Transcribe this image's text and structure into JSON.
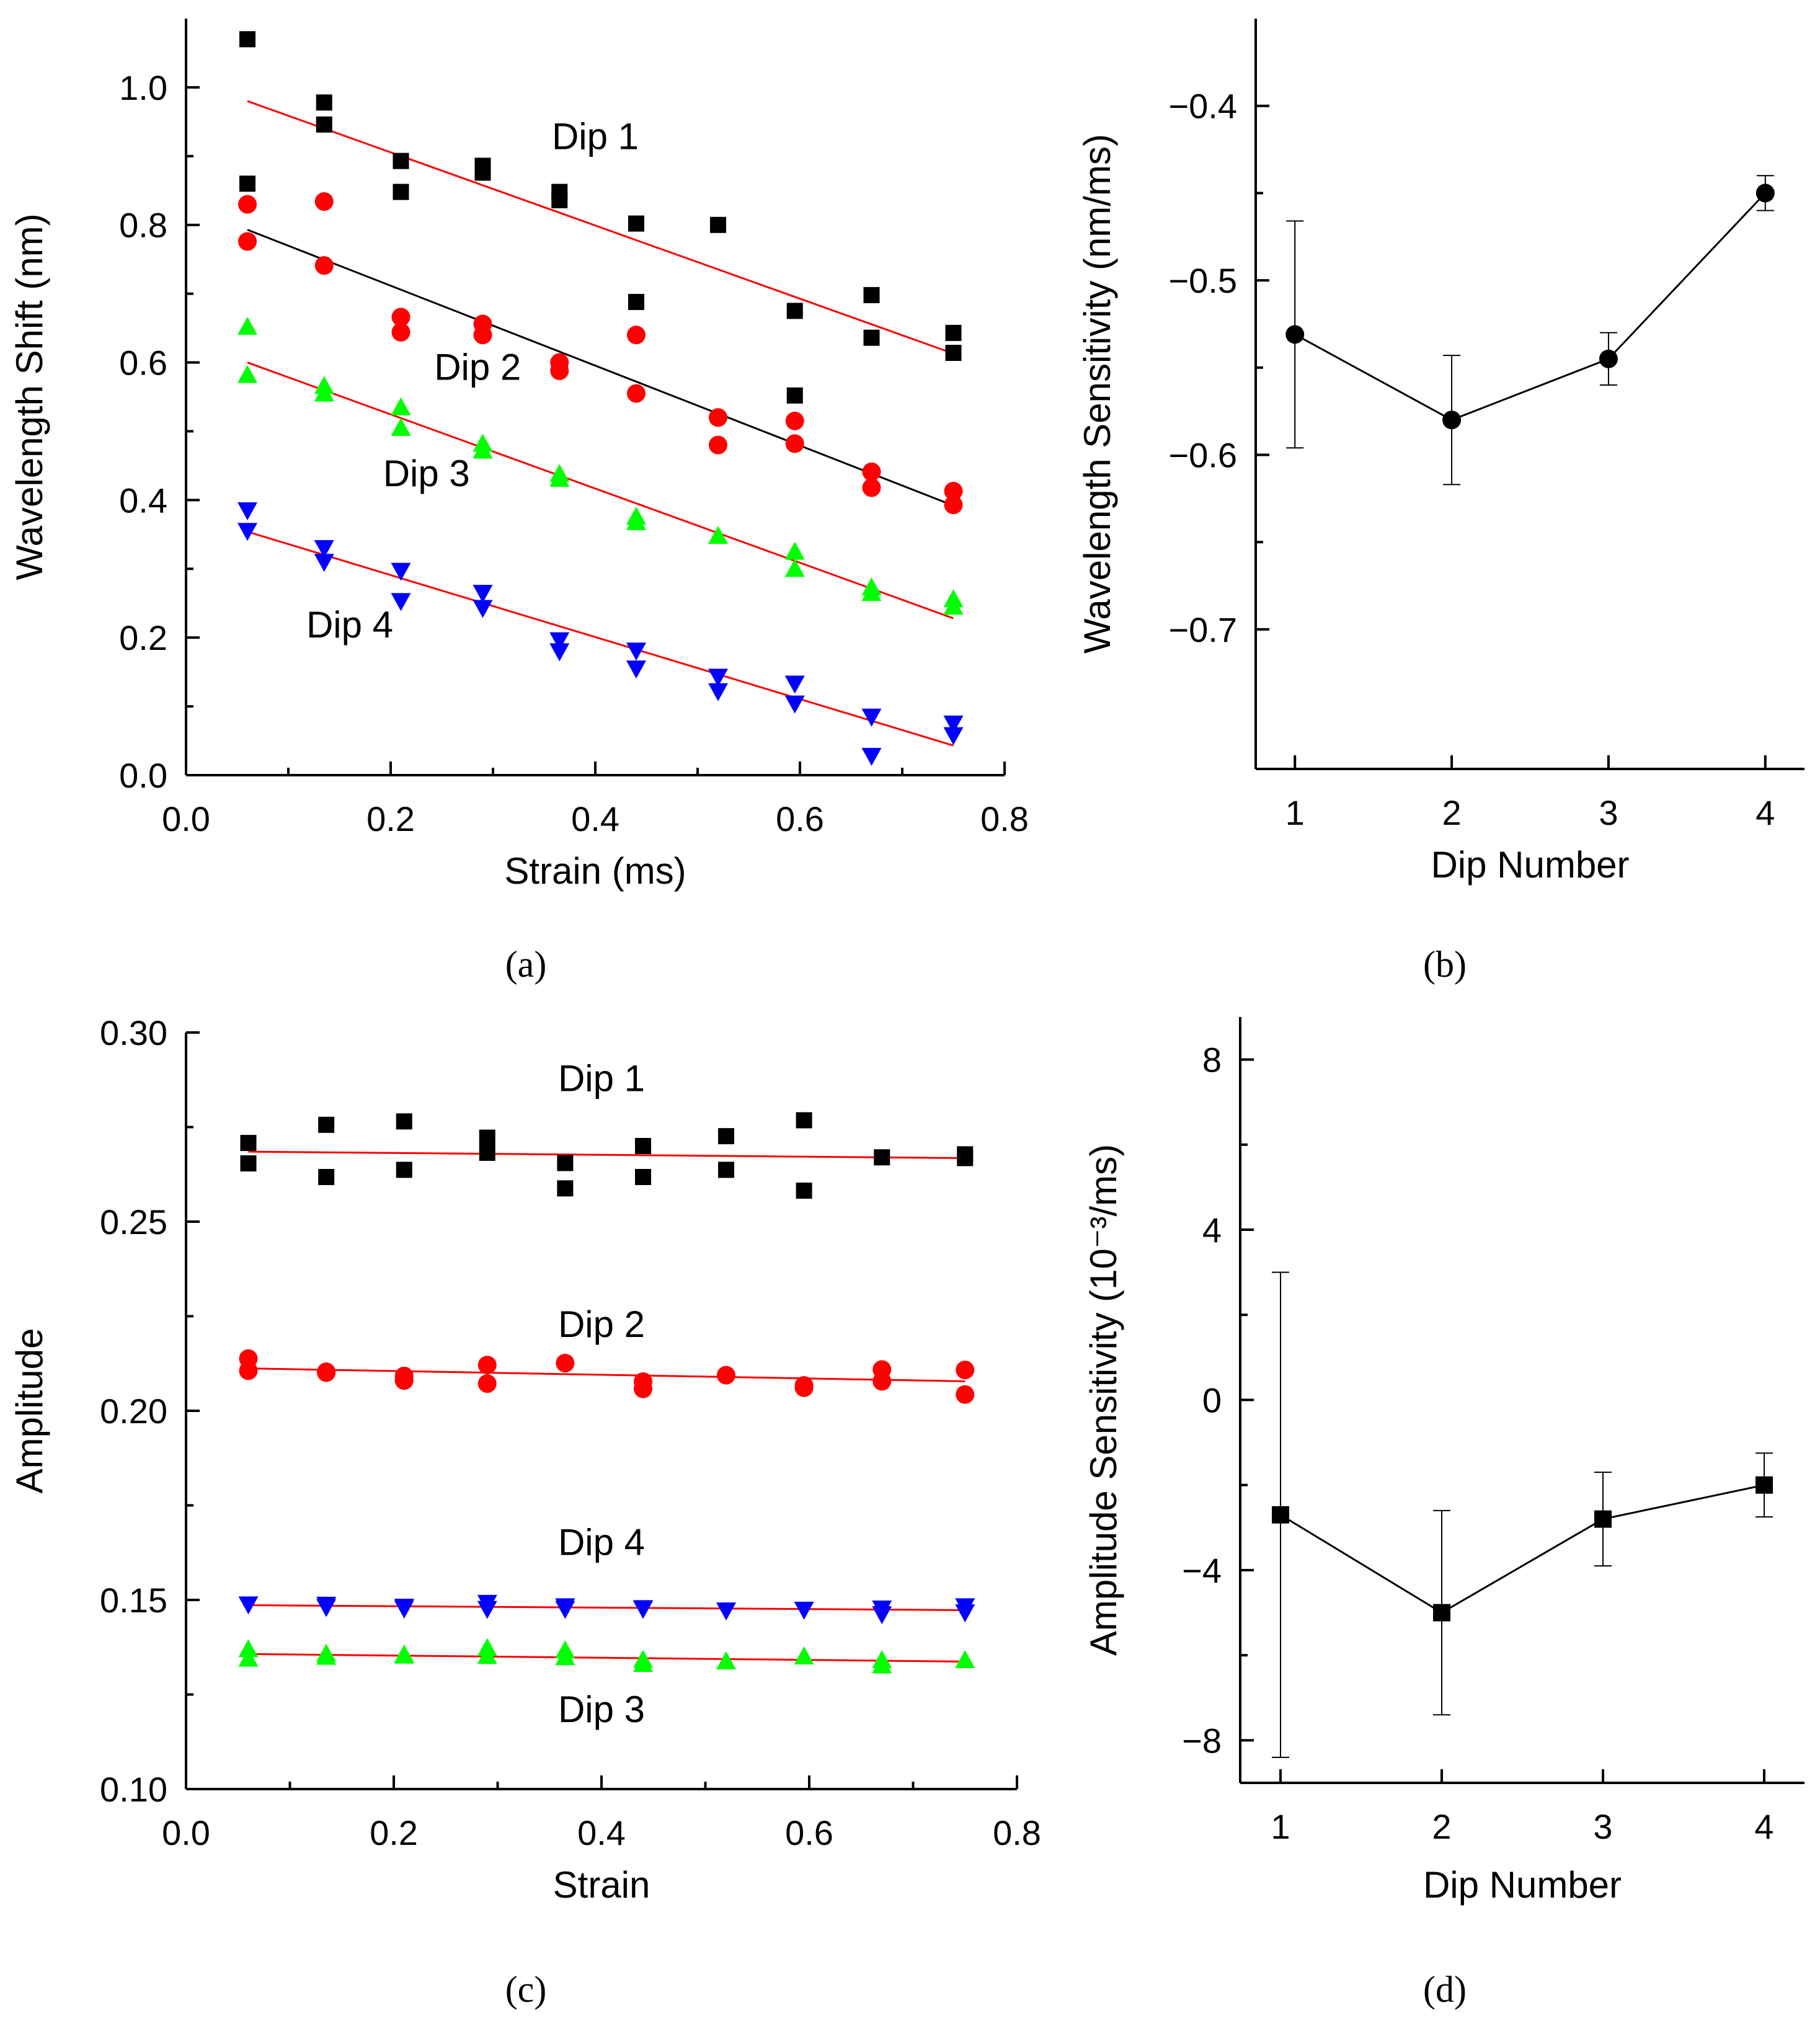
{
  "chart_data": [
    {
      "id": "a",
      "type": "scatter",
      "panel_label": "a",
      "xlabel": "Strain (ms)",
      "ylabel": "Wavelength Shift (nm)",
      "xlim": [
        0.0,
        0.8
      ],
      "ylim": [
        0.0,
        1.1
      ],
      "xticks": [
        "0.0",
        "0.2",
        "0.4",
        "0.6",
        "0.8"
      ],
      "yticks": [
        "0.0",
        "0.2",
        "0.4",
        "0.6",
        "0.8",
        "1.0"
      ],
      "series": [
        {
          "name": "Dip 1",
          "label": "Dip 1",
          "marker": "square",
          "color": "#000000",
          "fit_color": "#ff0000",
          "fit": [
            [
              0.06,
              0.98
            ],
            [
              0.75,
              0.613
            ]
          ],
          "points": [
            [
              0.06,
              1.07
            ],
            [
              0.06,
              0.86
            ],
            [
              0.135,
              0.978
            ],
            [
              0.135,
              0.946
            ],
            [
              0.21,
              0.893
            ],
            [
              0.21,
              0.848
            ],
            [
              0.29,
              0.886
            ],
            [
              0.29,
              0.876
            ],
            [
              0.365,
              0.848
            ],
            [
              0.365,
              0.836
            ],
            [
              0.44,
              0.802
            ],
            [
              0.44,
              0.688
            ],
            [
              0.52,
              0.8
            ],
            [
              0.595,
              0.675
            ],
            [
              0.595,
              0.552
            ],
            [
              0.67,
              0.698
            ],
            [
              0.67,
              0.636
            ],
            [
              0.75,
              0.643
            ],
            [
              0.75,
              0.614
            ]
          ]
        },
        {
          "name": "Dip 2",
          "label": "Dip 2",
          "marker": "circle",
          "color": "#ff0000",
          "fit_color": "#000000",
          "fit": [
            [
              0.06,
              0.793
            ],
            [
              0.75,
              0.392
            ]
          ],
          "points": [
            [
              0.06,
              0.83
            ],
            [
              0.06,
              0.776
            ],
            [
              0.135,
              0.834
            ],
            [
              0.135,
              0.741
            ],
            [
              0.21,
              0.666
            ],
            [
              0.21,
              0.644
            ],
            [
              0.29,
              0.656
            ],
            [
              0.29,
              0.64
            ],
            [
              0.365,
              0.6
            ],
            [
              0.365,
              0.588
            ],
            [
              0.44,
              0.555
            ],
            [
              0.44,
              0.64
            ],
            [
              0.52,
              0.52
            ],
            [
              0.52,
              0.48
            ],
            [
              0.595,
              0.515
            ],
            [
              0.595,
              0.482
            ],
            [
              0.67,
              0.441
            ],
            [
              0.67,
              0.418
            ],
            [
              0.75,
              0.413
            ],
            [
              0.75,
              0.393
            ]
          ]
        },
        {
          "name": "Dip 3",
          "label": "Dip 3",
          "marker": "triangle-up",
          "color": "#00ff00",
          "fit_color": "#ff0000",
          "fit": [
            [
              0.06,
              0.6
            ],
            [
              0.75,
              0.228
            ]
          ],
          "points": [
            [
              0.06,
              0.652
            ],
            [
              0.06,
              0.582
            ],
            [
              0.135,
              0.566
            ],
            [
              0.135,
              0.555
            ],
            [
              0.21,
              0.535
            ],
            [
              0.21,
              0.505
            ],
            [
              0.29,
              0.482
            ],
            [
              0.29,
              0.472
            ],
            [
              0.365,
              0.438
            ],
            [
              0.365,
              0.431
            ],
            [
              0.44,
              0.376
            ],
            [
              0.44,
              0.368
            ],
            [
              0.52,
              0.348
            ],
            [
              0.595,
              0.325
            ],
            [
              0.595,
              0.3
            ],
            [
              0.67,
              0.273
            ],
            [
              0.67,
              0.265
            ],
            [
              0.75,
              0.256
            ],
            [
              0.75,
              0.245
            ]
          ]
        },
        {
          "name": "Dip 4",
          "label": "Dip 4",
          "marker": "triangle-down",
          "color": "#0000ff",
          "fit_color": "#ff0000",
          "fit": [
            [
              0.06,
              0.354
            ],
            [
              0.75,
              0.043
            ]
          ],
          "points": [
            [
              0.06,
              0.385
            ],
            [
              0.06,
              0.355
            ],
            [
              0.135,
              0.33
            ],
            [
              0.135,
              0.31
            ],
            [
              0.21,
              0.297
            ],
            [
              0.21,
              0.253
            ],
            [
              0.29,
              0.265
            ],
            [
              0.29,
              0.243
            ],
            [
              0.365,
              0.196
            ],
            [
              0.365,
              0.18
            ],
            [
              0.44,
              0.181
            ],
            [
              0.44,
              0.155
            ],
            [
              0.52,
              0.143
            ],
            [
              0.52,
              0.122
            ],
            [
              0.595,
              0.133
            ],
            [
              0.595,
              0.104
            ],
            [
              0.67,
              0.085
            ],
            [
              0.67,
              0.028
            ],
            [
              0.75,
              0.075
            ],
            [
              0.75,
              0.058
            ]
          ]
        }
      ],
      "annotations": [
        {
          "text": "Dip 1",
          "x": 0.4,
          "y": 0.91
        },
        {
          "text": "Dip 2",
          "x": 0.285,
          "y": 0.575
        },
        {
          "text": "Dip 3",
          "x": 0.235,
          "y": 0.42
        },
        {
          "text": "Dip 4",
          "x": 0.16,
          "y": 0.2
        }
      ]
    },
    {
      "id": "b",
      "type": "line",
      "panel_label": "b",
      "xlabel": "Dip Number",
      "ylabel": "Wavelength Sensitivity (nm/ms)",
      "xlim": [
        0.75,
        4.25
      ],
      "ylim": [
        -0.78,
        -0.35
      ],
      "xticks": [
        "1",
        "2",
        "3",
        "4"
      ],
      "yticks": [
        "-0.4",
        "-0.5",
        "-0.6",
        "-0.7"
      ],
      "ytick_values": [
        -0.4,
        -0.5,
        -0.6,
        -0.7
      ],
      "marker": "circle",
      "x": [
        1,
        2,
        3,
        4
      ],
      "y": [
        -0.531,
        -0.58,
        -0.545,
        -0.45
      ],
      "yerr": [
        0.065,
        0.037,
        0.015,
        0.01
      ]
    },
    {
      "id": "c",
      "type": "scatter",
      "panel_label": "c",
      "xlabel": "Strain",
      "ylabel": "Amplitude",
      "xlim": [
        0.0,
        0.8
      ],
      "ylim": [
        0.1,
        0.3
      ],
      "xticks": [
        "0.0",
        "0.2",
        "0.4",
        "0.6",
        "0.8"
      ],
      "yticks": [
        "0.10",
        "0.15",
        "0.20",
        "0.25",
        "0.30"
      ],
      "series": [
        {
          "name": "Dip 1",
          "label": "Dip 1",
          "marker": "square",
          "color": "#000000",
          "fit_color": "#ff0000",
          "fit": [
            [
              0.06,
              0.2685
            ],
            [
              0.75,
              0.2668
            ]
          ],
          "points": [
            [
              0.06,
              0.2708
            ],
            [
              0.06,
              0.2654
            ],
            [
              0.135,
              0.2756
            ],
            [
              0.135,
              0.2618
            ],
            [
              0.21,
              0.2765
            ],
            [
              0.21,
              0.2637
            ],
            [
              0.29,
              0.2722
            ],
            [
              0.29,
              0.2682
            ],
            [
              0.365,
              0.2655
            ],
            [
              0.365,
              0.2588
            ],
            [
              0.44,
              0.27
            ],
            [
              0.44,
              0.2618
            ],
            [
              0.52,
              0.2726
            ],
            [
              0.52,
              0.2637
            ],
            [
              0.595,
              0.2768
            ],
            [
              0.595,
              0.2582
            ],
            [
              0.67,
              0.267
            ],
            [
              0.75,
              0.2678
            ],
            [
              0.75,
              0.2668
            ]
          ]
        },
        {
          "name": "Dip 2",
          "label": "Dip 2",
          "marker": "circle",
          "color": "#ff0000",
          "fit_color": "#ff0000",
          "fit": [
            [
              0.06,
              0.2112
            ],
            [
              0.75,
              0.2078
            ]
          ],
          "points": [
            [
              0.06,
              0.2138
            ],
            [
              0.06,
              0.2106
            ],
            [
              0.135,
              0.2103
            ],
            [
              0.135,
              0.2101
            ],
            [
              0.21,
              0.2092
            ],
            [
              0.21,
              0.208
            ],
            [
              0.29,
              0.2121
            ],
            [
              0.29,
              0.2072
            ],
            [
              0.365,
              0.2126
            ],
            [
              0.44,
              0.2077
            ],
            [
              0.44,
              0.2058
            ],
            [
              0.52,
              0.2094
            ],
            [
              0.595,
              0.2067
            ],
            [
              0.595,
              0.2061
            ],
            [
              0.67,
              0.2109
            ],
            [
              0.67,
              0.2078
            ],
            [
              0.75,
              0.2108
            ],
            [
              0.75,
              0.2043
            ]
          ]
        },
        {
          "name": "Dip 3",
          "label": "Dip 3",
          "marker": "triangle-up",
          "color": "#00ff00",
          "fit_color": "#ff0000",
          "fit": [
            [
              0.06,
              0.1357
            ],
            [
              0.75,
              0.1337
            ]
          ],
          "points": [
            [
              0.06,
              0.137
            ],
            [
              0.06,
              0.1345
            ],
            [
              0.135,
              0.1358
            ],
            [
              0.135,
              0.135
            ],
            [
              0.21,
              0.1356
            ],
            [
              0.21,
              0.1353
            ],
            [
              0.29,
              0.1373
            ],
            [
              0.29,
              0.1352
            ],
            [
              0.365,
              0.1367
            ],
            [
              0.365,
              0.1349
            ],
            [
              0.44,
              0.1342
            ],
            [
              0.44,
              0.1331
            ],
            [
              0.52,
              0.1338
            ],
            [
              0.595,
              0.1351
            ],
            [
              0.67,
              0.1341
            ],
            [
              0.67,
              0.1327
            ],
            [
              0.75,
              0.1341
            ]
          ]
        },
        {
          "name": "Dip 4",
          "label": "Dip 4",
          "marker": "triangle-down",
          "color": "#0000ff",
          "fit_color": "#ff0000",
          "fit": [
            [
              0.06,
              0.1486
            ],
            [
              0.75,
              0.1473
            ]
          ],
          "points": [
            [
              0.06,
              0.1488
            ],
            [
              0.135,
              0.1487
            ],
            [
              0.135,
              0.1481
            ],
            [
              0.21,
              0.1482
            ],
            [
              0.21,
              0.1477
            ],
            [
              0.29,
              0.1492
            ],
            [
              0.29,
              0.1476
            ],
            [
              0.365,
              0.1483
            ],
            [
              0.365,
              0.1476
            ],
            [
              0.44,
              0.1478
            ],
            [
              0.44,
              0.1476
            ],
            [
              0.52,
              0.1472
            ],
            [
              0.595,
              0.1474
            ],
            [
              0.67,
              0.1477
            ],
            [
              0.67,
              0.1462
            ],
            [
              0.75,
              0.1483
            ],
            [
              0.75,
              0.1467
            ]
          ]
        }
      ],
      "annotations": [
        {
          "text": "Dip 1",
          "x": 0.4,
          "y": 0.2845
        },
        {
          "text": "Dip 2",
          "x": 0.4,
          "y": 0.2195
        },
        {
          "text": "Dip 4",
          "x": 0.4,
          "y": 0.1619
        },
        {
          "text": "Dip 3",
          "x": 0.4,
          "y": 0.1177
        }
      ]
    },
    {
      "id": "d",
      "type": "line",
      "panel_label": "d",
      "xlabel": "Dip Number",
      "ylabel": "Amplitude Sensitivity (10⁻³/ms)",
      "xlim": [
        0.75,
        4.25
      ],
      "ylim": [
        -9,
        9
      ],
      "xticks": [
        "1",
        "2",
        "3",
        "4"
      ],
      "yticks": [
        "8",
        "4",
        "0",
        "-4",
        "-8"
      ],
      "ytick_values": [
        8,
        4,
        0,
        -4,
        -8
      ],
      "marker": "square",
      "x": [
        1,
        2,
        3,
        4
      ],
      "y": [
        -2.7,
        -5.0,
        -2.8,
        -2.0
      ],
      "yerr": [
        5.7,
        2.4,
        1.1,
        0.75
      ]
    }
  ],
  "captions": {
    "a": "(a)",
    "b": "(b)",
    "c": "(c)",
    "d": "(d)"
  }
}
